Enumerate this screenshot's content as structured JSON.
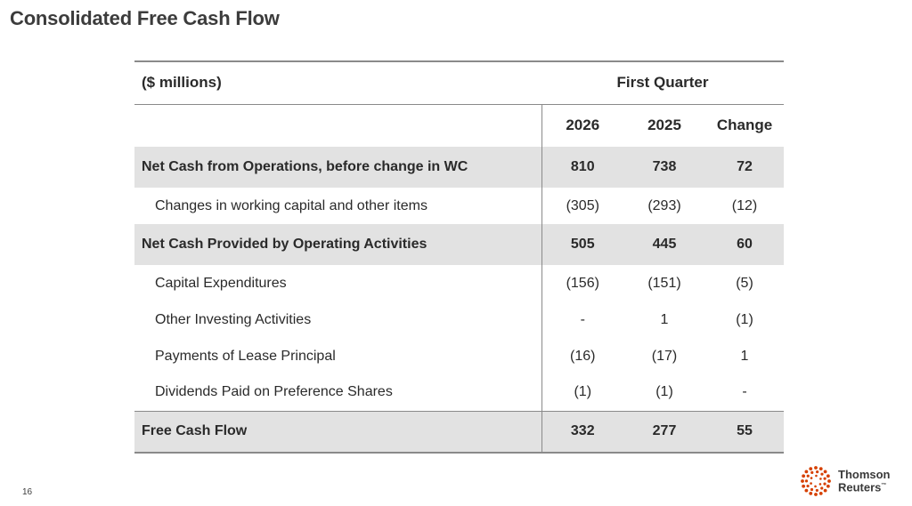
{
  "title": "Consolidated Free Cash Flow",
  "page_number": "16",
  "logo": {
    "line1": "Thomson",
    "line2": "Reuters",
    "tm": "™",
    "dot_color": "#d64000"
  },
  "table": {
    "unit_label": "($ millions)",
    "period_label": "First Quarter",
    "columns": [
      "2026",
      "2025",
      "Change"
    ],
    "rows": [
      {
        "label": "Net Cash from Operations, before change in WC",
        "values": [
          "810",
          "738",
          "72"
        ]
      },
      {
        "label": "Changes in working capital and other items",
        "values": [
          "(305)",
          "(293)",
          "(12)"
        ]
      },
      {
        "label": "Net Cash Provided by Operating Activities",
        "values": [
          "505",
          "445",
          "60"
        ]
      },
      {
        "label": "Capital Expenditures",
        "values": [
          "(156)",
          "(151)",
          "(5)"
        ]
      },
      {
        "label": "Other Investing Activities",
        "values": [
          "-",
          "1",
          "(1)"
        ]
      },
      {
        "label": "Payments of Lease Principal",
        "values": [
          "(16)",
          "(17)",
          "1"
        ]
      },
      {
        "label": "Dividends Paid on Preference Shares",
        "values": [
          "(1)",
          "(1)",
          "-"
        ]
      },
      {
        "label": "Free Cash Flow",
        "values": [
          "332",
          "277",
          "55"
        ]
      }
    ]
  }
}
